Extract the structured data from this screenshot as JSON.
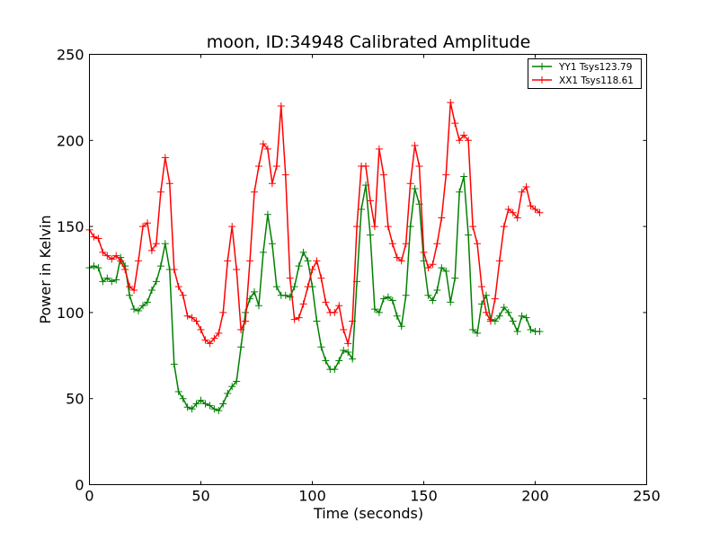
{
  "chart_data": {
    "type": "line",
    "title": "moon, ID:34948 Calibrated Amplitude",
    "xlabel": "Time (seconds)",
    "ylabel": "Power in Kelvin",
    "xlim": [
      0,
      250
    ],
    "ylim": [
      0,
      250
    ],
    "xticks": [
      "0",
      "50",
      "100",
      "150",
      "200",
      "250"
    ],
    "yticks": [
      "0",
      "50",
      "100",
      "150",
      "200",
      "250"
    ],
    "grid": false,
    "legend_position": "top-right",
    "marker": "plus",
    "series": [
      {
        "name": "YY1 Tsys123.79",
        "color": "#008000",
        "points": [
          [
            0,
            126
          ],
          [
            2,
            127
          ],
          [
            4,
            126
          ],
          [
            6,
            118
          ],
          [
            8,
            120
          ],
          [
            10,
            118
          ],
          [
            12,
            119
          ],
          [
            14,
            132
          ],
          [
            16,
            127
          ],
          [
            18,
            110
          ],
          [
            20,
            102
          ],
          [
            22,
            101
          ],
          [
            24,
            104
          ],
          [
            26,
            106
          ],
          [
            28,
            113
          ],
          [
            30,
            118
          ],
          [
            32,
            127
          ],
          [
            34,
            140
          ],
          [
            36,
            125
          ],
          [
            38,
            70
          ],
          [
            40,
            54
          ],
          [
            42,
            50
          ],
          [
            44,
            45
          ],
          [
            46,
            44
          ],
          [
            48,
            47
          ],
          [
            50,
            49
          ],
          [
            52,
            47
          ],
          [
            54,
            46
          ],
          [
            56,
            44
          ],
          [
            58,
            43
          ],
          [
            60,
            47
          ],
          [
            62,
            53
          ],
          [
            64,
            57
          ],
          [
            66,
            60
          ],
          [
            68,
            80
          ],
          [
            70,
            100
          ],
          [
            72,
            108
          ],
          [
            74,
            112
          ],
          [
            76,
            104
          ],
          [
            78,
            135
          ],
          [
            80,
            157
          ],
          [
            82,
            140
          ],
          [
            84,
            115
          ],
          [
            86,
            110
          ],
          [
            88,
            110
          ],
          [
            90,
            109
          ],
          [
            92,
            115
          ],
          [
            94,
            127
          ],
          [
            96,
            135
          ],
          [
            98,
            130
          ],
          [
            100,
            115
          ],
          [
            102,
            95
          ],
          [
            104,
            80
          ],
          [
            106,
            72
          ],
          [
            108,
            67
          ],
          [
            110,
            67
          ],
          [
            112,
            72
          ],
          [
            114,
            78
          ],
          [
            116,
            77
          ],
          [
            118,
            73
          ],
          [
            120,
            118
          ],
          [
            122,
            160
          ],
          [
            124,
            174
          ],
          [
            126,
            145
          ],
          [
            128,
            102
          ],
          [
            130,
            100
          ],
          [
            132,
            108
          ],
          [
            134,
            109
          ],
          [
            136,
            107
          ],
          [
            138,
            98
          ],
          [
            140,
            92
          ],
          [
            142,
            110
          ],
          [
            144,
            150
          ],
          [
            146,
            172
          ],
          [
            148,
            163
          ],
          [
            150,
            130
          ],
          [
            152,
            110
          ],
          [
            154,
            107
          ],
          [
            156,
            113
          ],
          [
            158,
            126
          ],
          [
            160,
            124
          ],
          [
            162,
            106
          ],
          [
            164,
            120
          ],
          [
            166,
            170
          ],
          [
            168,
            179
          ],
          [
            170,
            145
          ],
          [
            172,
            90
          ],
          [
            174,
            88
          ],
          [
            176,
            105
          ],
          [
            178,
            110
          ],
          [
            180,
            96
          ],
          [
            182,
            95
          ],
          [
            184,
            98
          ],
          [
            186,
            103
          ],
          [
            188,
            100
          ],
          [
            190,
            95
          ],
          [
            192,
            89
          ],
          [
            194,
            98
          ],
          [
            196,
            97
          ],
          [
            198,
            90
          ],
          [
            200,
            89
          ],
          [
            202,
            89
          ]
        ]
      },
      {
        "name": "XX1 Tsys118.61",
        "color": "#ff0000",
        "points": [
          [
            0,
            148
          ],
          [
            2,
            144
          ],
          [
            4,
            143
          ],
          [
            6,
            135
          ],
          [
            8,
            133
          ],
          [
            10,
            131
          ],
          [
            12,
            133
          ],
          [
            14,
            130
          ],
          [
            16,
            125
          ],
          [
            18,
            115
          ],
          [
            20,
            113
          ],
          [
            22,
            130
          ],
          [
            24,
            150
          ],
          [
            26,
            152
          ],
          [
            28,
            136
          ],
          [
            30,
            140
          ],
          [
            32,
            170
          ],
          [
            34,
            190
          ],
          [
            36,
            175
          ],
          [
            38,
            125
          ],
          [
            40,
            115
          ],
          [
            42,
            110
          ],
          [
            44,
            98
          ],
          [
            46,
            97
          ],
          [
            48,
            95
          ],
          [
            50,
            90
          ],
          [
            52,
            84
          ],
          [
            54,
            82
          ],
          [
            56,
            85
          ],
          [
            58,
            88
          ],
          [
            60,
            100
          ],
          [
            62,
            130
          ],
          [
            64,
            150
          ],
          [
            66,
            125
          ],
          [
            68,
            90
          ],
          [
            70,
            95
          ],
          [
            72,
            130
          ],
          [
            74,
            170
          ],
          [
            76,
            185
          ],
          [
            78,
            198
          ],
          [
            80,
            195
          ],
          [
            82,
            175
          ],
          [
            84,
            185
          ],
          [
            86,
            220
          ],
          [
            88,
            180
          ],
          [
            90,
            120
          ],
          [
            92,
            96
          ],
          [
            94,
            97
          ],
          [
            96,
            105
          ],
          [
            98,
            115
          ],
          [
            100,
            125
          ],
          [
            102,
            130
          ],
          [
            104,
            120
          ],
          [
            106,
            106
          ],
          [
            108,
            100
          ],
          [
            110,
            100
          ],
          [
            112,
            104
          ],
          [
            114,
            90
          ],
          [
            116,
            82
          ],
          [
            118,
            95
          ],
          [
            120,
            150
          ],
          [
            122,
            185
          ],
          [
            124,
            185
          ],
          [
            126,
            165
          ],
          [
            128,
            150
          ],
          [
            130,
            195
          ],
          [
            132,
            180
          ],
          [
            134,
            150
          ],
          [
            136,
            140
          ],
          [
            138,
            132
          ],
          [
            140,
            130
          ],
          [
            142,
            140
          ],
          [
            144,
            175
          ],
          [
            146,
            197
          ],
          [
            148,
            185
          ],
          [
            150,
            135
          ],
          [
            152,
            126
          ],
          [
            154,
            128
          ],
          [
            156,
            140
          ],
          [
            158,
            155
          ],
          [
            160,
            180
          ],
          [
            162,
            222
          ],
          [
            164,
            210
          ],
          [
            166,
            200
          ],
          [
            168,
            203
          ],
          [
            170,
            200
          ],
          [
            172,
            150
          ],
          [
            174,
            140
          ],
          [
            176,
            115
          ],
          [
            178,
            100
          ],
          [
            180,
            95
          ],
          [
            182,
            108
          ],
          [
            184,
            130
          ],
          [
            186,
            150
          ],
          [
            188,
            160
          ],
          [
            190,
            158
          ],
          [
            192,
            155
          ],
          [
            194,
            170
          ],
          [
            196,
            173
          ],
          [
            198,
            162
          ],
          [
            200,
            160
          ],
          [
            202,
            158
          ]
        ]
      }
    ]
  }
}
